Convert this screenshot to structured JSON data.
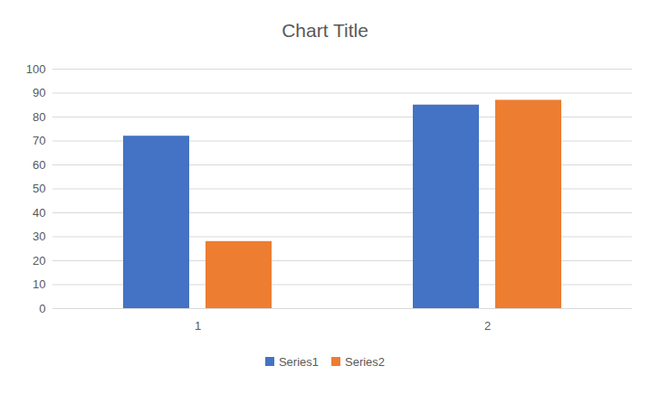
{
  "chart_data": {
    "type": "bar",
    "title": "Chart Title",
    "categories": [
      "1",
      "2"
    ],
    "series": [
      {
        "name": "Series1",
        "color": "#4472c4",
        "values": [
          72,
          85
        ]
      },
      {
        "name": "Series2",
        "color": "#ed7d31",
        "values": [
          28,
          87
        ]
      }
    ],
    "ylim": [
      0,
      100
    ],
    "yticks": [
      0,
      10,
      20,
      30,
      40,
      50,
      60,
      70,
      80,
      90,
      100
    ],
    "grid": true,
    "legend": "bottom"
  }
}
